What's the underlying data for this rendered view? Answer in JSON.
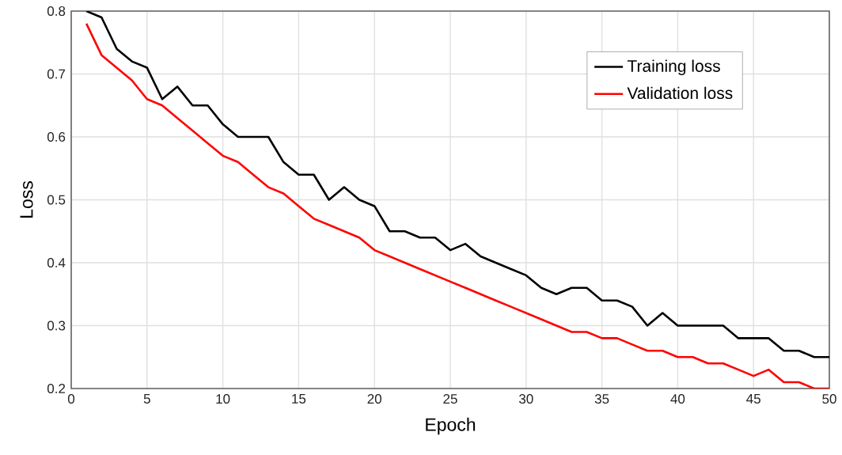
{
  "chart_data": {
    "type": "line",
    "xlabel": "Epoch",
    "ylabel": "Loss",
    "x": [
      1,
      2,
      3,
      4,
      5,
      6,
      7,
      8,
      9,
      10,
      11,
      12,
      13,
      14,
      15,
      16,
      17,
      18,
      19,
      20,
      21,
      22,
      23,
      24,
      25,
      26,
      27,
      28,
      29,
      30,
      31,
      32,
      33,
      34,
      35,
      36,
      37,
      38,
      39,
      40,
      41,
      42,
      43,
      44,
      45,
      46,
      47,
      48,
      49,
      50
    ],
    "series": [
      {
        "name": "Training loss",
        "color": "#000000",
        "values": [
          0.8,
          0.79,
          0.74,
          0.72,
          0.71,
          0.66,
          0.68,
          0.65,
          0.65,
          0.62,
          0.6,
          0.6,
          0.6,
          0.56,
          0.54,
          0.54,
          0.5,
          0.52,
          0.5,
          0.49,
          0.45,
          0.45,
          0.44,
          0.44,
          0.42,
          0.43,
          0.41,
          0.4,
          0.39,
          0.38,
          0.36,
          0.35,
          0.36,
          0.36,
          0.34,
          0.34,
          0.33,
          0.3,
          0.32,
          0.3,
          0.3,
          0.3,
          0.3,
          0.28,
          0.28,
          0.28,
          0.26,
          0.26,
          0.25,
          0.25
        ]
      },
      {
        "name": "Validation loss",
        "color": "#ff0000",
        "values": [
          0.78,
          0.73,
          0.71,
          0.69,
          0.66,
          0.65,
          0.63,
          0.61,
          0.59,
          0.57,
          0.56,
          0.54,
          0.52,
          0.51,
          0.49,
          0.47,
          0.46,
          0.45,
          0.44,
          0.42,
          0.41,
          0.4,
          0.39,
          0.38,
          0.37,
          0.36,
          0.35,
          0.34,
          0.33,
          0.32,
          0.31,
          0.3,
          0.29,
          0.29,
          0.28,
          0.28,
          0.27,
          0.26,
          0.26,
          0.25,
          0.25,
          0.24,
          0.24,
          0.23,
          0.22,
          0.23,
          0.21,
          0.21,
          0.2,
          0.2
        ]
      }
    ],
    "xlim": [
      0,
      50
    ],
    "ylim": [
      0.2,
      0.8
    ],
    "xticks": [
      0,
      5,
      10,
      15,
      20,
      25,
      30,
      35,
      40,
      45,
      50
    ],
    "yticks": [
      0.2,
      0.3,
      0.4,
      0.5,
      0.6,
      0.7,
      0.8
    ],
    "grid": true,
    "legend": "top right"
  }
}
